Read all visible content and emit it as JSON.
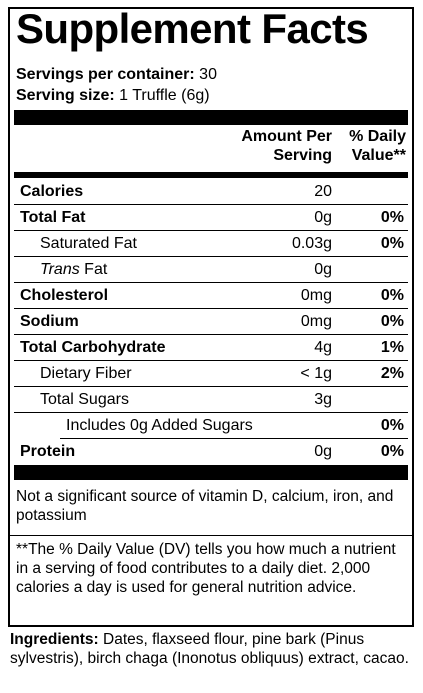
{
  "label": {
    "title": "Supplement Facts",
    "servings_per_container_label": "Servings per container:",
    "servings_per_container_value": "30",
    "serving_size_label": "Serving size:",
    "serving_size_value": "1 Truffle (6g)",
    "header": {
      "amount_line1": "Amount Per",
      "amount_line2": "Serving",
      "dv_line1": "% Daily",
      "dv_line2": "Value**"
    },
    "rows": [
      {
        "name": "Calories",
        "amount": "20",
        "dv": ""
      },
      {
        "name": "Total Fat",
        "amount": "0g",
        "dv": "0%"
      },
      {
        "name": "Saturated Fat",
        "amount": "0.03g",
        "dv": "0%"
      },
      {
        "name_italic": "Trans",
        "name": "Fat",
        "amount": "0g",
        "dv": ""
      },
      {
        "name": "Cholesterol",
        "amount": "0mg",
        "dv": "0%"
      },
      {
        "name": "Sodium",
        "amount": "0mg",
        "dv": "0%"
      },
      {
        "name": "Total Carbohydrate",
        "amount": "4g",
        "dv": "1%"
      },
      {
        "name": "Dietary Fiber",
        "amount": "< 1g",
        "dv": "2%"
      },
      {
        "name": "Total Sugars",
        "amount": "3g",
        "dv": ""
      },
      {
        "name": "Includes 0g Added Sugars",
        "amount": "",
        "dv": "0%"
      },
      {
        "name": "Protein",
        "amount": "0g",
        "dv": "0%"
      }
    ],
    "not_significant": "Not a significant source of vitamin D, calcium, iron, and potassium",
    "footnote": "**The % Daily Value (DV) tells you how much a nutrient in a serving of food contributes to a daily diet. 2,000 calories a day is used for general nutrition advice."
  },
  "ingredients": {
    "label": "Ingredients:",
    "text": " Dates, flaxseed flour, pine bark (Pinus sylvestris), birch chaga (Inonotus obliquus) extract, cacao."
  }
}
